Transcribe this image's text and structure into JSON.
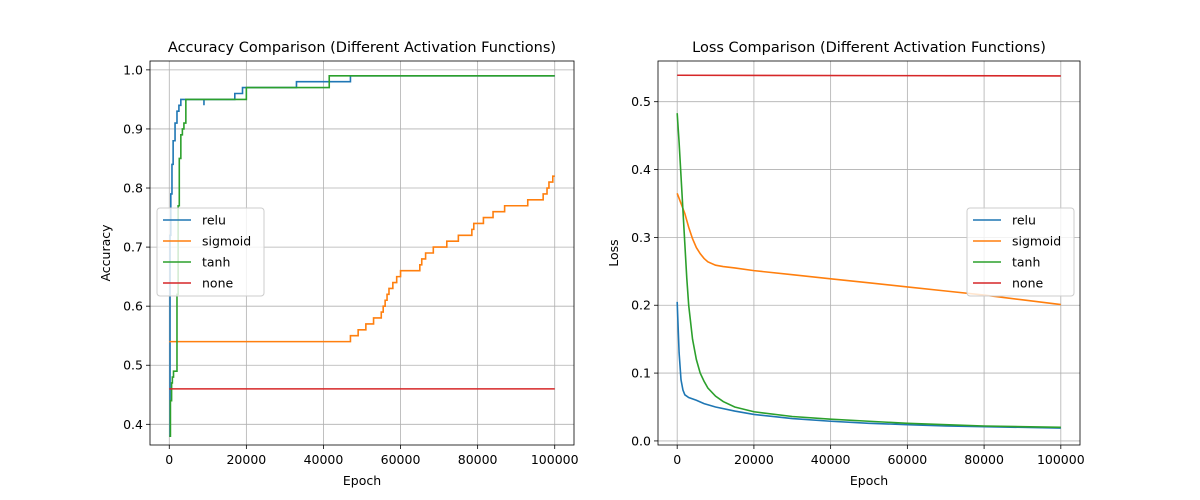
{
  "chart_data": [
    {
      "type": "line",
      "title": "Accuracy Comparison (Different Activation Functions)",
      "xlabel": "Epoch",
      "ylabel": "Accuracy",
      "xlim": [
        -5000,
        105000
      ],
      "ylim": [
        0.365,
        1.015
      ],
      "xticks": [
        0,
        20000,
        40000,
        60000,
        80000,
        100000
      ],
      "yticks": [
        0.4,
        0.5,
        0.6,
        0.7,
        0.8,
        0.9,
        1.0
      ],
      "ytick_format": 1,
      "grid": true,
      "legend_placement": "center-left",
      "series": [
        {
          "name": "relu",
          "color": "#1f77b4",
          "step": true,
          "x": [
            0,
            200,
            400,
            700,
            1000,
            1500,
            2000,
            2500,
            3000,
            9000,
            9000,
            17000,
            19000,
            20000,
            33000,
            47000,
            100000
          ],
          "y": [
            0.38,
            0.72,
            0.79,
            0.84,
            0.88,
            0.91,
            0.93,
            0.94,
            0.95,
            0.94,
            0.95,
            0.96,
            0.97,
            0.97,
            0.98,
            0.99,
            0.99
          ]
        },
        {
          "name": "sigmoid",
          "color": "#ff7f0e",
          "step": true,
          "x": [
            0,
            47000,
            49000,
            51000,
            53000,
            55000,
            55500,
            56000,
            56500,
            57000,
            58000,
            59000,
            60000,
            65000,
            65500,
            66500,
            67000,
            68500,
            70000,
            72000,
            75000,
            77500,
            78500,
            79000,
            80000,
            81500,
            84000,
            87000,
            90000,
            93000,
            97000,
            97500,
            98000,
            98500,
            99000,
            99500,
            100000
          ],
          "y": [
            0.54,
            0.55,
            0.56,
            0.57,
            0.58,
            0.59,
            0.6,
            0.61,
            0.62,
            0.63,
            0.64,
            0.65,
            0.66,
            0.67,
            0.68,
            0.69,
            0.69,
            0.7,
            0.7,
            0.71,
            0.72,
            0.72,
            0.73,
            0.74,
            0.74,
            0.75,
            0.76,
            0.77,
            0.77,
            0.78,
            0.79,
            0.79,
            0.8,
            0.81,
            0.81,
            0.82,
            0.82
          ]
        },
        {
          "name": "tanh",
          "color": "#2ca02c",
          "step": true,
          "x": [
            0,
            300,
            600,
            800,
            1100,
            1400,
            1700,
            2000,
            2300,
            2600,
            3000,
            3400,
            3800,
            4300,
            4800,
            6000,
            8000,
            16000,
            20000,
            41500,
            100000
          ],
          "y": [
            0.38,
            0.44,
            0.47,
            0.48,
            0.49,
            0.49,
            0.49,
            0.62,
            0.77,
            0.85,
            0.89,
            0.9,
            0.91,
            0.95,
            0.95,
            0.95,
            0.95,
            0.95,
            0.97,
            0.99,
            0.99
          ]
        },
        {
          "name": "none",
          "color": "#d62728",
          "step": true,
          "x": [
            0,
            100000
          ],
          "y": [
            0.46,
            0.46
          ]
        }
      ]
    },
    {
      "type": "line",
      "title": "Loss Comparison (Different Activation Functions)",
      "xlabel": "Epoch",
      "ylabel": "Loss",
      "xlim": [
        -5000,
        105000
      ],
      "ylim": [
        -0.006,
        0.56
      ],
      "xticks": [
        0,
        20000,
        40000,
        60000,
        80000,
        100000
      ],
      "yticks": [
        0.0,
        0.1,
        0.2,
        0.3,
        0.4,
        0.5
      ],
      "ytick_format": 1,
      "grid": true,
      "legend_placement": "center-right",
      "series": [
        {
          "name": "relu",
          "color": "#1f77b4",
          "x": [
            0,
            500,
            1000,
            1500,
            2000,
            3000,
            5000,
            7000,
            10000,
            15000,
            20000,
            30000,
            40000,
            50000,
            60000,
            70000,
            80000,
            90000,
            100000
          ],
          "y": [
            0.205,
            0.13,
            0.09,
            0.075,
            0.068,
            0.064,
            0.06,
            0.055,
            0.05,
            0.044,
            0.039,
            0.033,
            0.029,
            0.026,
            0.024,
            0.022,
            0.021,
            0.02,
            0.019
          ]
        },
        {
          "name": "sigmoid",
          "color": "#ff7f0e",
          "x": [
            0,
            1000,
            2000,
            3000,
            4000,
            5000,
            6000,
            7000,
            8000,
            10000,
            12000,
            15000,
            20000,
            30000,
            40000,
            50000,
            60000,
            70000,
            80000,
            90000,
            100000
          ],
          "y": [
            0.365,
            0.35,
            0.335,
            0.315,
            0.298,
            0.285,
            0.276,
            0.269,
            0.264,
            0.259,
            0.257,
            0.255,
            0.251,
            0.245,
            0.239,
            0.233,
            0.227,
            0.221,
            0.215,
            0.208,
            0.201
          ]
        },
        {
          "name": "tanh",
          "color": "#2ca02c",
          "x": [
            0,
            500,
            1000,
            1500,
            2000,
            2500,
            3000,
            4000,
            5000,
            6000,
            7000,
            8000,
            10000,
            12000,
            15000,
            20000,
            30000,
            40000,
            50000,
            60000,
            70000,
            80000,
            90000,
            100000
          ],
          "y": [
            0.483,
            0.44,
            0.39,
            0.34,
            0.29,
            0.24,
            0.2,
            0.15,
            0.12,
            0.1,
            0.088,
            0.078,
            0.066,
            0.058,
            0.05,
            0.043,
            0.036,
            0.032,
            0.029,
            0.026,
            0.024,
            0.022,
            0.021,
            0.02
          ]
        },
        {
          "name": "none",
          "color": "#d62728",
          "x": [
            0,
            100000
          ],
          "y": [
            0.539,
            0.538
          ]
        }
      ]
    }
  ]
}
